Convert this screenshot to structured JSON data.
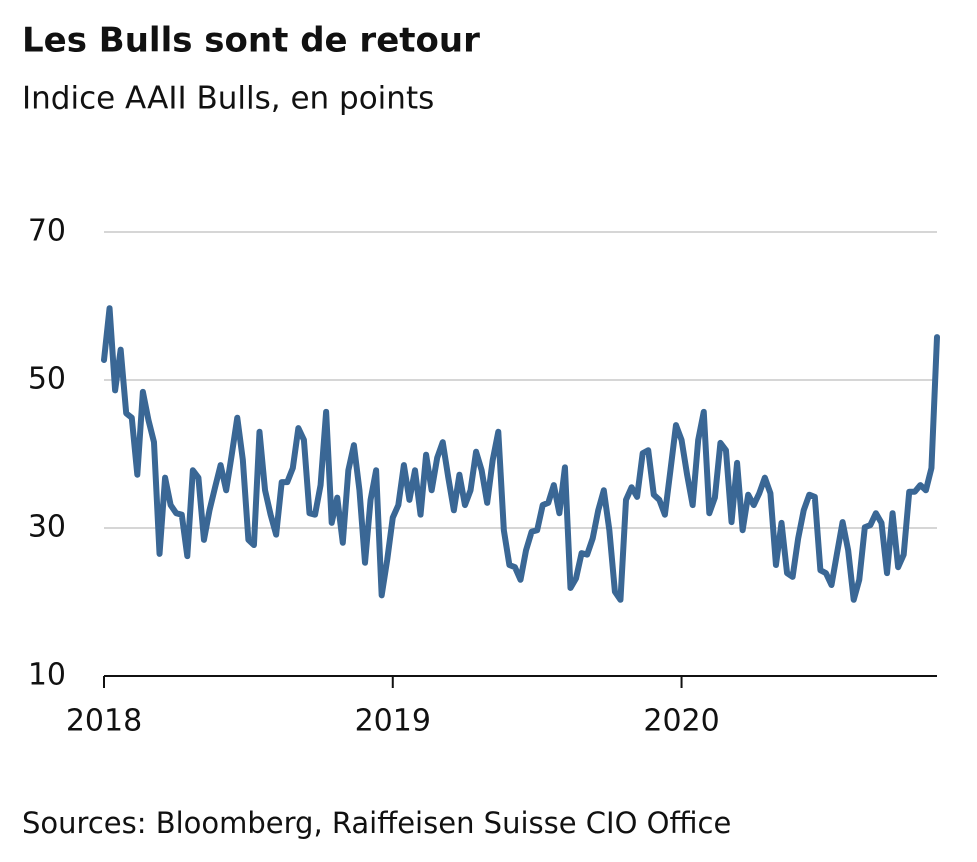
{
  "chart_data": {
    "type": "line",
    "title": "Les Bulls sont de retour",
    "subtitle": "Indice AAII Bulls, en points",
    "source": "Sources: Bloomberg, Raiffeisen Suisse CIO Office",
    "categories": [
      "2018",
      null,
      null,
      null,
      null,
      null,
      null,
      null,
      null,
      null,
      null,
      null,
      null,
      null,
      null,
      null,
      null,
      null,
      null,
      null,
      null,
      null,
      null,
      null,
      null,
      null,
      null,
      null,
      null,
      null,
      null,
      null,
      null,
      null,
      null,
      null,
      null,
      null,
      null,
      null,
      null,
      null,
      null,
      null,
      null,
      null,
      null,
      null,
      null,
      null,
      null,
      null,
      "2019",
      null,
      null,
      null,
      null,
      null,
      null,
      null,
      null,
      null,
      null,
      null,
      null,
      null,
      null,
      null,
      null,
      null,
      null,
      null,
      null,
      null,
      null,
      null,
      null,
      null,
      null,
      null,
      null,
      null,
      null,
      null,
      null,
      null,
      null,
      null,
      null,
      null,
      null,
      null,
      null,
      null,
      null,
      null,
      null,
      null,
      null,
      null,
      null,
      null,
      null,
      null,
      "2020",
      null,
      null,
      null,
      null,
      null,
      null,
      null,
      null,
      null,
      null,
      null,
      null,
      null,
      null,
      null,
      null,
      null,
      null,
      null,
      null,
      null,
      null,
      null,
      null,
      null,
      null,
      null,
      null,
      null,
      null,
      null,
      null,
      null,
      null,
      null,
      null,
      null,
      null,
      null,
      null,
      null,
      null,
      null,
      null,
      null,
      null
    ],
    "series": [
      {
        "name": "AAII Bulls",
        "color": "#3a6795",
        "values": [
          52.7,
          59.7,
          48.6,
          54.1,
          45.5,
          44.9,
          37.2,
          48.4,
          44.6,
          41.6,
          26.5,
          36.8,
          33.1,
          32.0,
          31.8,
          26.2,
          37.8,
          36.8,
          28.4,
          32.4,
          35.5,
          38.5,
          35.1,
          39.9,
          44.9,
          39.2,
          28.4,
          27.7,
          43.0,
          35.1,
          31.8,
          29.1,
          36.2,
          36.2,
          38.1,
          43.5,
          41.9,
          32.0,
          31.8,
          35.8,
          45.7,
          30.7,
          34.1,
          28.0,
          37.8,
          41.2,
          35.1,
          25.3,
          33.8,
          37.8,
          20.9,
          25.7,
          31.4,
          33.1,
          38.5,
          33.8,
          37.8,
          31.8,
          39.9,
          35.1,
          39.5,
          41.6,
          36.8,
          32.4,
          37.2,
          33.1,
          35.1,
          40.3,
          37.8,
          33.4,
          39.2,
          43.0,
          29.7,
          25.0,
          24.7,
          23.0,
          27.0,
          29.5,
          29.7,
          33.1,
          33.4,
          35.8,
          32.0,
          38.2,
          21.9,
          23.2,
          26.6,
          26.4,
          28.6,
          32.4,
          35.1,
          29.7,
          21.4,
          20.3,
          33.8,
          35.5,
          34.2,
          40.1,
          40.5,
          34.5,
          33.8,
          31.8,
          37.8,
          43.9,
          41.9,
          37.2,
          33.1,
          41.9,
          45.7,
          32.0,
          34.1,
          41.5,
          40.5,
          30.8,
          38.8,
          29.7,
          34.5,
          33.1,
          34.7,
          36.8,
          34.7,
          25.0,
          30.7,
          23.9,
          23.4,
          28.6,
          32.4,
          34.5,
          34.2,
          24.3,
          23.9,
          22.3,
          26.6,
          30.8,
          27.0,
          20.3,
          23.0,
          30.1,
          30.4,
          32.0,
          30.7,
          23.9,
          32.0,
          24.7,
          26.4,
          34.9,
          34.9,
          35.8,
          35.1,
          38.1,
          55.8
        ]
      }
    ],
    "ylim": [
      10,
      70
    ],
    "yticks": [
      10,
      30,
      50,
      70
    ],
    "grid": true
  }
}
